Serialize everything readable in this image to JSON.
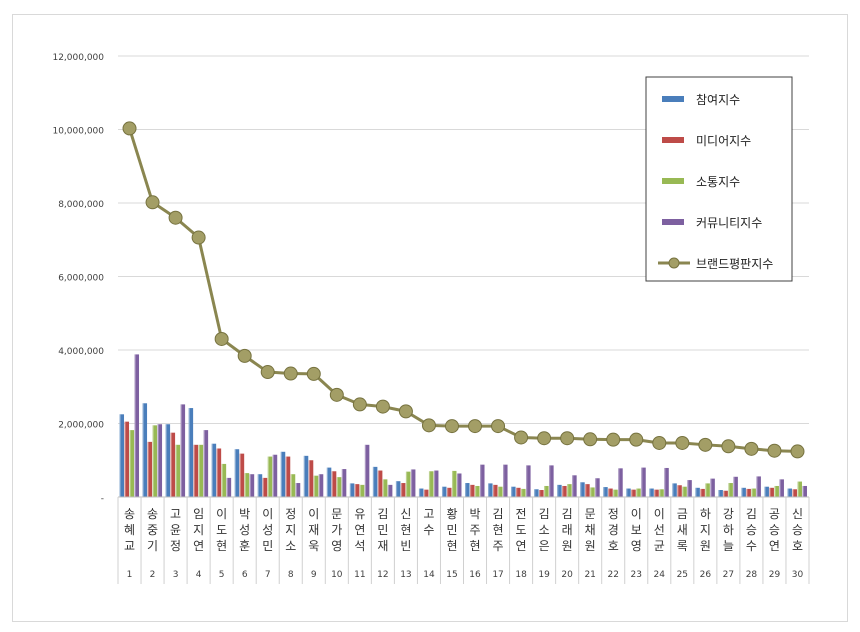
{
  "chart_data": {
    "type": "bar",
    "categories": [
      "송혜교",
      "송중기",
      "고윤정",
      "임지연",
      "이도현",
      "박성훈",
      "이성민",
      "정지소",
      "이재욱",
      "문가영",
      "유연석",
      "김민재",
      "신현빈",
      "고수",
      "황민현",
      "박주현",
      "김현주",
      "전도연",
      "김소은",
      "김래원",
      "문채원",
      "정경호",
      "이보영",
      "이선균",
      "금새록",
      "하지원",
      "강하늘",
      "김승수",
      "공승연",
      "신승호"
    ],
    "ranks": [
      "1",
      "2",
      "3",
      "4",
      "5",
      "6",
      "7",
      "8",
      "9",
      "10",
      "11",
      "12",
      "13",
      "14",
      "15",
      "16",
      "17",
      "18",
      "19",
      "20",
      "21",
      "22",
      "23",
      "24",
      "25",
      "26",
      "27",
      "28",
      "29",
      "30"
    ],
    "series": [
      {
        "name": "참여지수",
        "color": "#4a7ebb",
        "values": [
          2250000,
          2550000,
          1980000,
          2420000,
          1450000,
          1300000,
          620000,
          1230000,
          1120000,
          800000,
          370000,
          820000,
          430000,
          230000,
          280000,
          380000,
          370000,
          280000,
          210000,
          330000,
          400000,
          270000,
          230000,
          230000,
          370000,
          250000,
          190000,
          250000,
          280000,
          230000
        ]
      },
      {
        "name": "미디어지수",
        "color": "#be4b48",
        "values": [
          2050000,
          1500000,
          1750000,
          1420000,
          1320000,
          1180000,
          520000,
          1100000,
          1000000,
          700000,
          350000,
          720000,
          380000,
          200000,
          250000,
          330000,
          330000,
          250000,
          190000,
          300000,
          350000,
          230000,
          200000,
          200000,
          320000,
          220000,
          170000,
          220000,
          250000,
          210000
        ]
      },
      {
        "name": "소통지수",
        "color": "#98b954",
        "values": [
          1820000,
          1950000,
          1420000,
          1420000,
          900000,
          650000,
          1100000,
          620000,
          580000,
          540000,
          330000,
          480000,
          690000,
          700000,
          710000,
          300000,
          280000,
          220000,
          300000,
          350000,
          260000,
          200000,
          230000,
          210000,
          280000,
          370000,
          380000,
          230000,
          300000,
          420000
        ]
      },
      {
        "name": "커뮤니티지수",
        "color": "#7d60a0",
        "values": [
          3880000,
          1980000,
          2520000,
          1820000,
          520000,
          620000,
          1150000,
          380000,
          620000,
          760000,
          1420000,
          330000,
          750000,
          720000,
          640000,
          880000,
          880000,
          860000,
          860000,
          590000,
          510000,
          780000,
          800000,
          790000,
          460000,
          500000,
          550000,
          560000,
          480000,
          300000
        ]
      },
      {
        "name": "브랜드평판지수",
        "color": "#8c8c5a",
        "values": [
          10030000,
          8020000,
          7600000,
          7060000,
          4300000,
          3840000,
          3400000,
          3360000,
          3350000,
          2780000,
          2520000,
          2460000,
          2330000,
          1950000,
          1930000,
          1930000,
          1930000,
          1620000,
          1600000,
          1600000,
          1570000,
          1560000,
          1560000,
          1470000,
          1470000,
          1420000,
          1380000,
          1310000,
          1260000,
          1240000
        ]
      }
    ],
    "y_ticks": [
      "-",
      "2,000,000",
      "4,000,000",
      "6,000,000",
      "8,000,000",
      "10,000,000",
      "12,000,000"
    ],
    "ylim": [
      0,
      12000000
    ],
    "grid": true,
    "legend_position": "top-right"
  }
}
